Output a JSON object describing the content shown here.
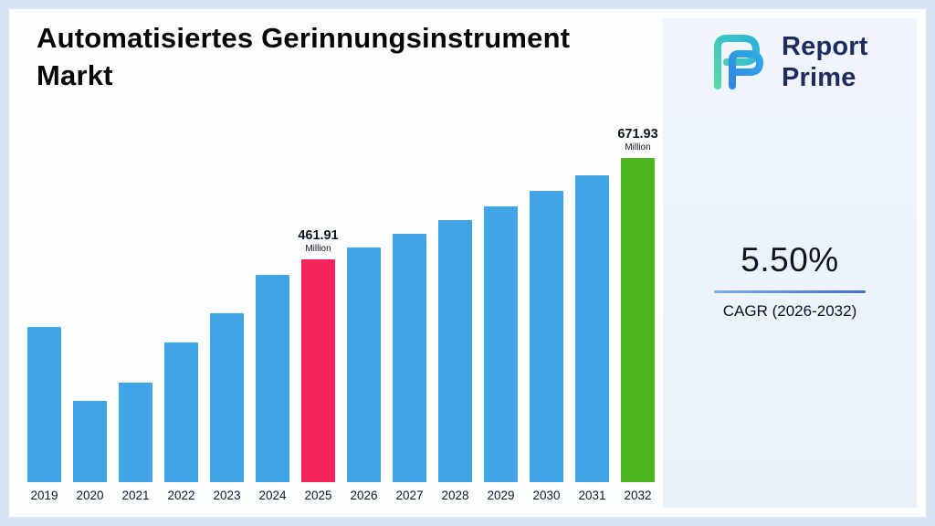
{
  "header": {
    "title": "Automatisiertes Gerinnungsinstrument Markt"
  },
  "brand": {
    "name_line1": "Report",
    "name_line2": "Prime"
  },
  "cagr": {
    "value": "5.50%",
    "label": "CAGR (2026-2032)"
  },
  "chart_data": {
    "type": "bar",
    "title": "Automatisiertes Gerinnungsinstrument Markt",
    "unit": "Million",
    "categories": [
      "2019",
      "2020",
      "2021",
      "2022",
      "2023",
      "2024",
      "2025",
      "2026",
      "2027",
      "2028",
      "2029",
      "2030",
      "2031",
      "2032"
    ],
    "values": [
      322,
      168,
      206,
      290,
      351,
      430,
      461.91,
      487.32,
      514.12,
      542.39,
      572.24,
      603.71,
      636.92,
      671.93
    ],
    "ylim": [
      0,
      700
    ],
    "grid": false,
    "legend_position": "none",
    "bar_default_color": "#42a4e8",
    "annotations": [
      {
        "category": "2025",
        "value_label": "461.91",
        "unit_label": "Million",
        "color": "#f5255c"
      },
      {
        "category": "2032",
        "value_label": "671.93",
        "unit_label": "Million",
        "color": "#4cb41f"
      }
    ]
  },
  "colors": {
    "frame": "#d7e2f2",
    "background": "#fbfdff",
    "right_panel": "#edf3fb",
    "bar_blue": "#42a4e8",
    "bar_pink": "#f5255c",
    "bar_green": "#4cb41f",
    "brand_navy": "#1d2b5e",
    "underline_gradient_start": "#79b0ea",
    "underline_gradient_end": "#3f6fd1",
    "text_dark": "#0c1220"
  }
}
